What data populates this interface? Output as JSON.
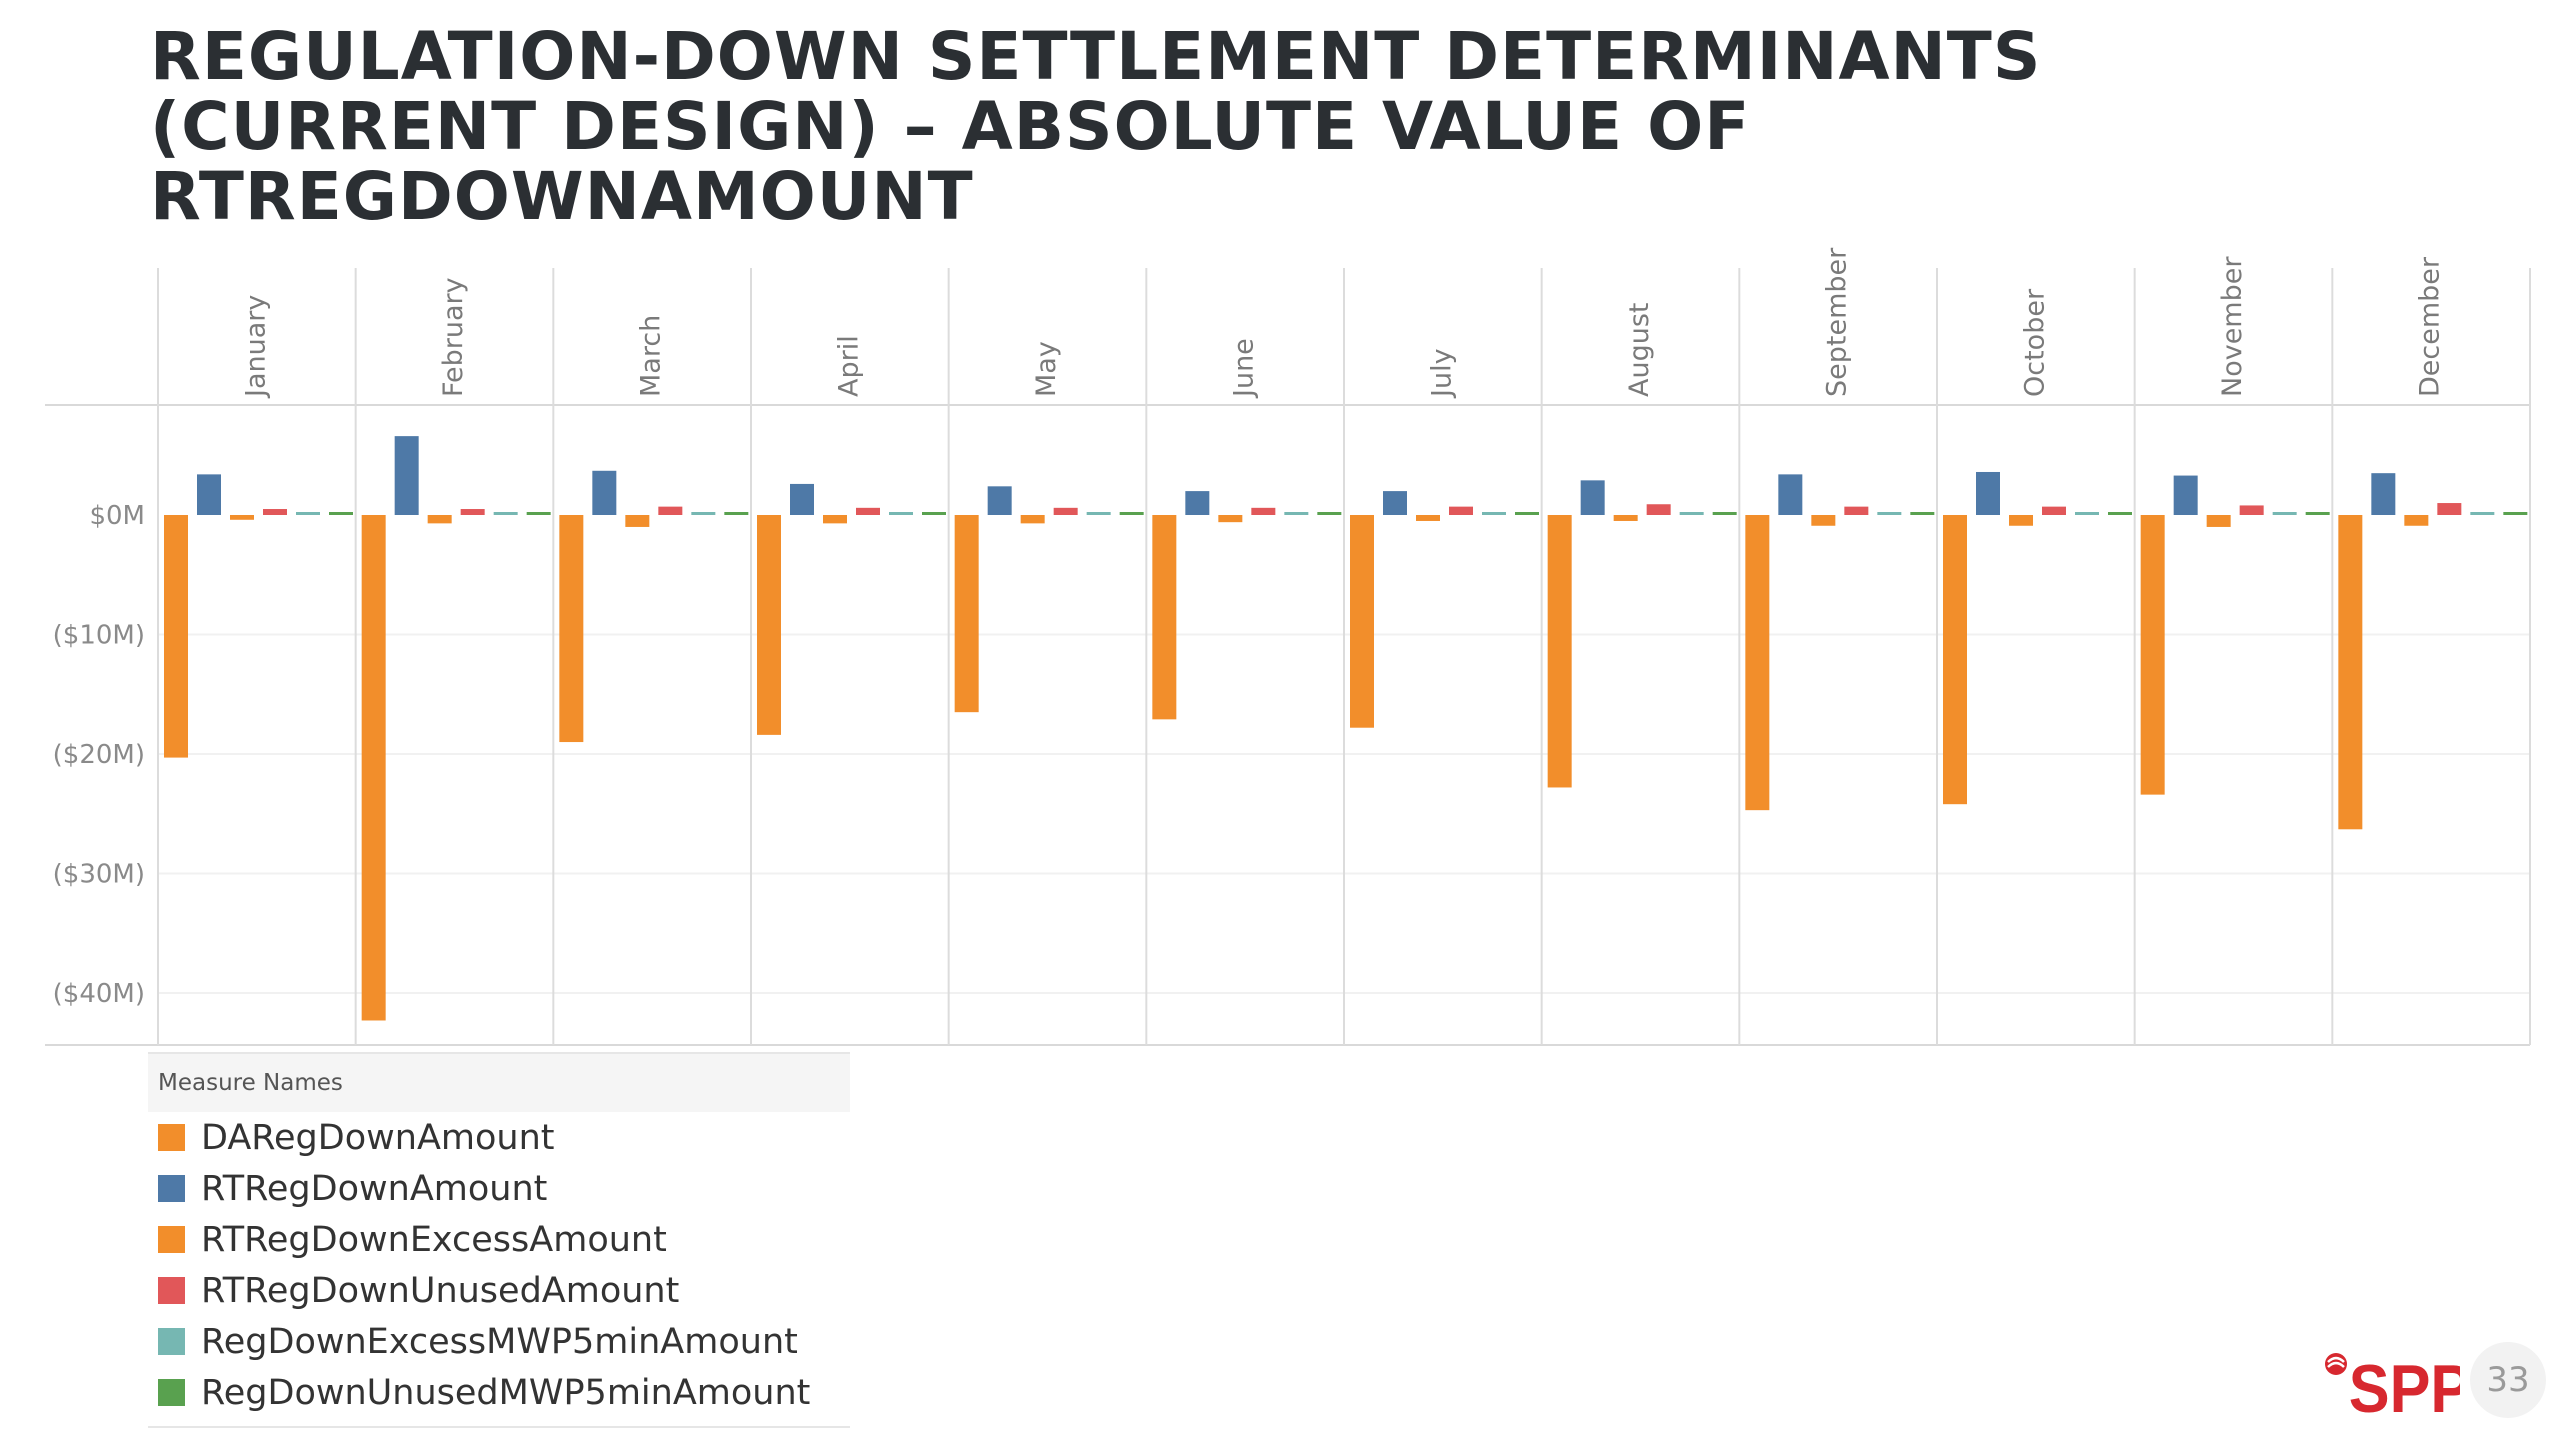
{
  "title": {
    "line1": "REGULATION-DOWN SETTLEMENT DETERMINANTS",
    "line2": "(CURRENT DESIGN) – ABSOLUTE VALUE OF",
    "line3": "RTREGDOWNAMOUNT"
  },
  "chart_data": {
    "type": "bar",
    "title": "REGULATION-DOWN SETTLEMENT DETERMINANTS (CURRENT DESIGN) – ABSOLUTE VALUE OF RTREGDOWNAMOUNT",
    "categories": [
      "January",
      "February",
      "March",
      "April",
      "May",
      "June",
      "July",
      "August",
      "September",
      "October",
      "November",
      "December"
    ],
    "y_tick_labels": [
      "$0M",
      "($10M)",
      "($20M)",
      "($30M)",
      "($40M)"
    ],
    "y_ticks": [
      0,
      -10,
      -20,
      -30,
      -40
    ],
    "ylim": [
      -45,
      9
    ],
    "units": "millions of dollars",
    "grid": true,
    "legend_position": "bottom-left",
    "series": [
      {
        "name": "DARegDownAmount",
        "color": "#f28e2b",
        "values": [
          -20.3,
          -42.3,
          -19.0,
          -18.4,
          -16.5,
          -17.1,
          -17.8,
          -22.8,
          -24.7,
          -24.2,
          -23.4,
          -26.3
        ]
      },
      {
        "name": "RTRegDownAmount",
        "color": "#4e79a7",
        "values": [
          3.4,
          6.6,
          3.7,
          2.6,
          2.4,
          2.0,
          2.0,
          2.9,
          3.4,
          3.6,
          3.3,
          3.5
        ]
      },
      {
        "name": "RTRegDownExcessAmount",
        "color": "#f28e2b",
        "values": [
          -0.4,
          -0.7,
          -1.0,
          -0.7,
          -0.7,
          -0.6,
          -0.5,
          -0.5,
          -0.9,
          -0.9,
          -1.0,
          -0.9
        ]
      },
      {
        "name": "RTRegDownUnusedAmount",
        "color": "#e15759",
        "values": [
          0.5,
          0.5,
          0.7,
          0.6,
          0.6,
          0.6,
          0.7,
          0.9,
          0.7,
          0.7,
          0.8,
          1.0
        ]
      },
      {
        "name": "RegDownExcessMWP5minAmount",
        "color": "#76b7b2",
        "values": [
          0.1,
          0.1,
          0.1,
          0.1,
          0.1,
          0.1,
          0.1,
          0.1,
          0.1,
          0.1,
          0.1,
          0.1
        ]
      },
      {
        "name": "RegDownUnusedMWP5minAmount",
        "color": "#59a14f",
        "values": [
          0.1,
          0.1,
          0.1,
          0.1,
          0.1,
          0.1,
          0.1,
          0.1,
          0.1,
          0.1,
          0.1,
          0.1
        ]
      }
    ]
  },
  "legend": {
    "title": "Measure Names",
    "items": [
      {
        "label": "DARegDownAmount",
        "color": "#f28e2b"
      },
      {
        "label": "RTRegDownAmount",
        "color": "#4e79a7"
      },
      {
        "label": "RTRegDownExcessAmount",
        "color": "#f28e2b"
      },
      {
        "label": "RTRegDownUnusedAmount",
        "color": "#e15759"
      },
      {
        "label": "RegDownExcessMWP5minAmount",
        "color": "#76b7b2"
      },
      {
        "label": "RegDownUnusedMWP5minAmount",
        "color": "#59a14f"
      }
    ]
  },
  "footer": {
    "logo_text": "SPP",
    "logo_color": "#d7282f",
    "page_number": "33"
  }
}
